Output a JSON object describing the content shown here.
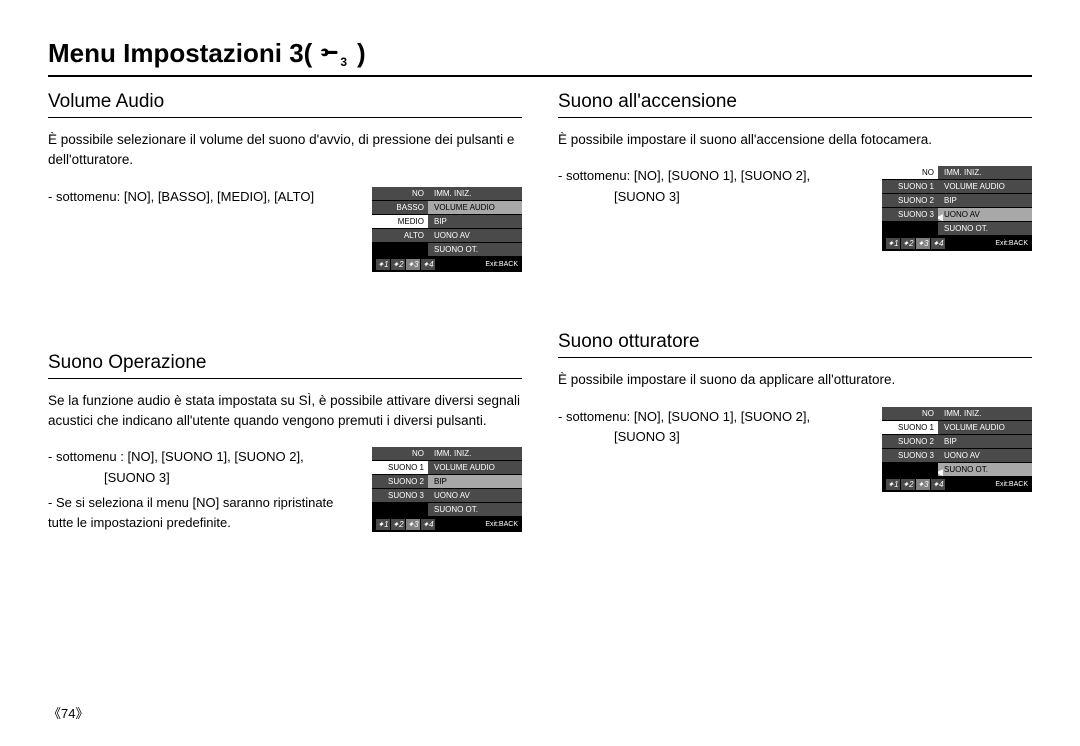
{
  "page": {
    "title_prefix": "Menu Impostazioni 3(",
    "title_suffix": ")",
    "wrench_sub": "3",
    "number": "《74》"
  },
  "sections": {
    "volume_audio": {
      "title": "Volume Audio",
      "body": "È possibile selezionare il volume del suono d'avvio, di pressione dei pulsanti e dell'otturatore.",
      "submenu_line1": "- sottomenu: [NO], [BASSO], [MEDIO], [ALTO]"
    },
    "suono_accensione": {
      "title": "Suono all'accensione",
      "body": "È possibile impostare il suono all'accensione della fotocamera.",
      "submenu_line1": "- sottomenu: [NO], [SUONO 1], [SUONO 2],",
      "submenu_line2": "[SUONO 3]"
    },
    "suono_operazione": {
      "title": "Suono Operazione",
      "body": "Se la funzione audio è stata impostata su SÌ, è possibile attivare diversi segnali acustici che indicano all'utente quando vengono premuti i diversi pulsanti.",
      "submenu_line1": "- sottomenu : [NO], [SUONO 1], [SUONO 2],",
      "submenu_line2": "[SUONO 3]",
      "note_line1": "- Se si seleziona il menu [NO] saranno ripristinate tutte",
      "note_line2": "  le impostazioni predefinite."
    },
    "suono_otturatore": {
      "title": "Suono otturatore",
      "body": "È possibile impostare il suono da applicare all'otturatore.",
      "submenu_line1": "- sottomenu: [NO], [SUONO 1], [SUONO 2],",
      "submenu_line2": "[SUONO 3]"
    }
  },
  "widgets": {
    "volume_audio": {
      "left": [
        "NO",
        "BASSO",
        "MEDIO",
        "ALTO",
        ""
      ],
      "left_highlight_index": 2,
      "right": [
        "IMM. INIZ.",
        "VOLUME AUDIO",
        "BIP",
        "UONO AV",
        "SUONO OT."
      ],
      "right_selected_index": 1,
      "arrow_on_selected": false,
      "exit": "Exit:BACK"
    },
    "suono_accensione": {
      "left": [
        "NO",
        "SUONO 1",
        "SUONO 2",
        "SUONO 3",
        ""
      ],
      "left_highlight_index": 0,
      "right": [
        "IMM. INIZ.",
        "VOLUME AUDIO",
        "BIP",
        "UONO AV",
        "SUONO OT."
      ],
      "right_selected_index": 3,
      "arrow_on_selected": true,
      "exit": "Exit:BACK"
    },
    "suono_operazione": {
      "left": [
        "NO",
        "SUONO 1",
        "SUONO 2",
        "SUONO 3",
        ""
      ],
      "left_highlight_index": 1,
      "right": [
        "IMM. INIZ.",
        "VOLUME AUDIO",
        "BIP",
        "UONO AV",
        "SUONO OT."
      ],
      "right_selected_index": 2,
      "arrow_on_selected": false,
      "exit": "Exit:BACK"
    },
    "suono_otturatore": {
      "left": [
        "NO",
        "SUONO 1",
        "SUONO 2",
        "SUONO 3",
        ""
      ],
      "left_highlight_index": 1,
      "right": [
        "IMM. INIZ.",
        "VOLUME AUDIO",
        "BIP",
        "UONO AV",
        "SUONO OT."
      ],
      "right_selected_index": 4,
      "arrow_on_selected": true,
      "exit": "Exit:BACK"
    },
    "footer_tabs": [
      "1",
      "2",
      "3",
      "4"
    ],
    "footer_active_index": 2
  }
}
